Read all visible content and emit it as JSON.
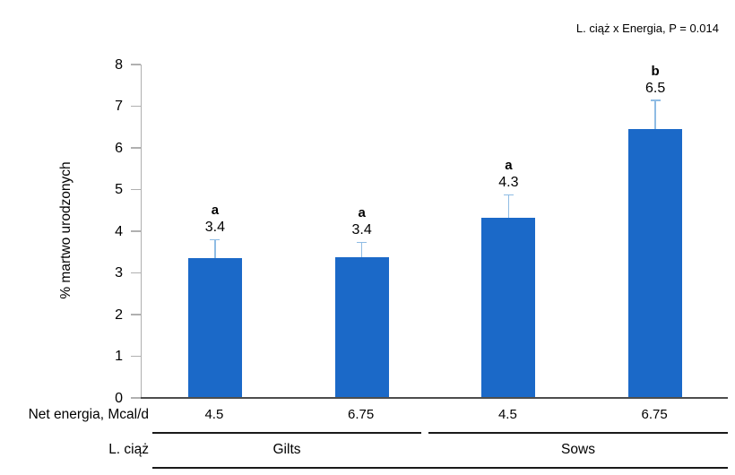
{
  "chart_data": {
    "type": "bar",
    "title": "",
    "ylabel": "% martwo urodzonych",
    "xlabel": "",
    "annotation": "L. ciąż x Energia, P = 0.014",
    "ylim": [
      0,
      8
    ],
    "yticks": [
      "0",
      "1",
      "2",
      "3",
      "4",
      "5",
      "6",
      "7",
      "8"
    ],
    "grid": false,
    "legend": "none",
    "x_rows": [
      {
        "label": "Net energia, Mcal/d",
        "values": [
          "4.5",
          "6.75",
          "4.5",
          "6.75"
        ]
      },
      {
        "label": "L. ciąż",
        "values": [
          "Gilts",
          "Sows"
        ]
      }
    ],
    "bars": [
      {
        "group": "Gilts",
        "net_energy": "4.5",
        "value": 3.35,
        "display": "3.4",
        "letter": "a",
        "error_upper": 0.43
      },
      {
        "group": "Gilts",
        "net_energy": "6.75",
        "value": 3.38,
        "display": "3.4",
        "letter": "a",
        "error_upper": 0.34
      },
      {
        "group": "Sows",
        "net_energy": "4.5",
        "value": 4.33,
        "display": "4.3",
        "letter": "a",
        "error_upper": 0.52
      },
      {
        "group": "Sows",
        "net_energy": "6.75",
        "value": 6.45,
        "display": "6.5",
        "letter": "b",
        "error_upper": 0.67
      }
    ],
    "colors": {
      "bar": "#1b69c8",
      "error_bar": "#8fbce4",
      "axis": "#b0b0b0",
      "baseline": "#4d4d4d",
      "underline": "#1a1a1a",
      "text": "#000000"
    }
  }
}
